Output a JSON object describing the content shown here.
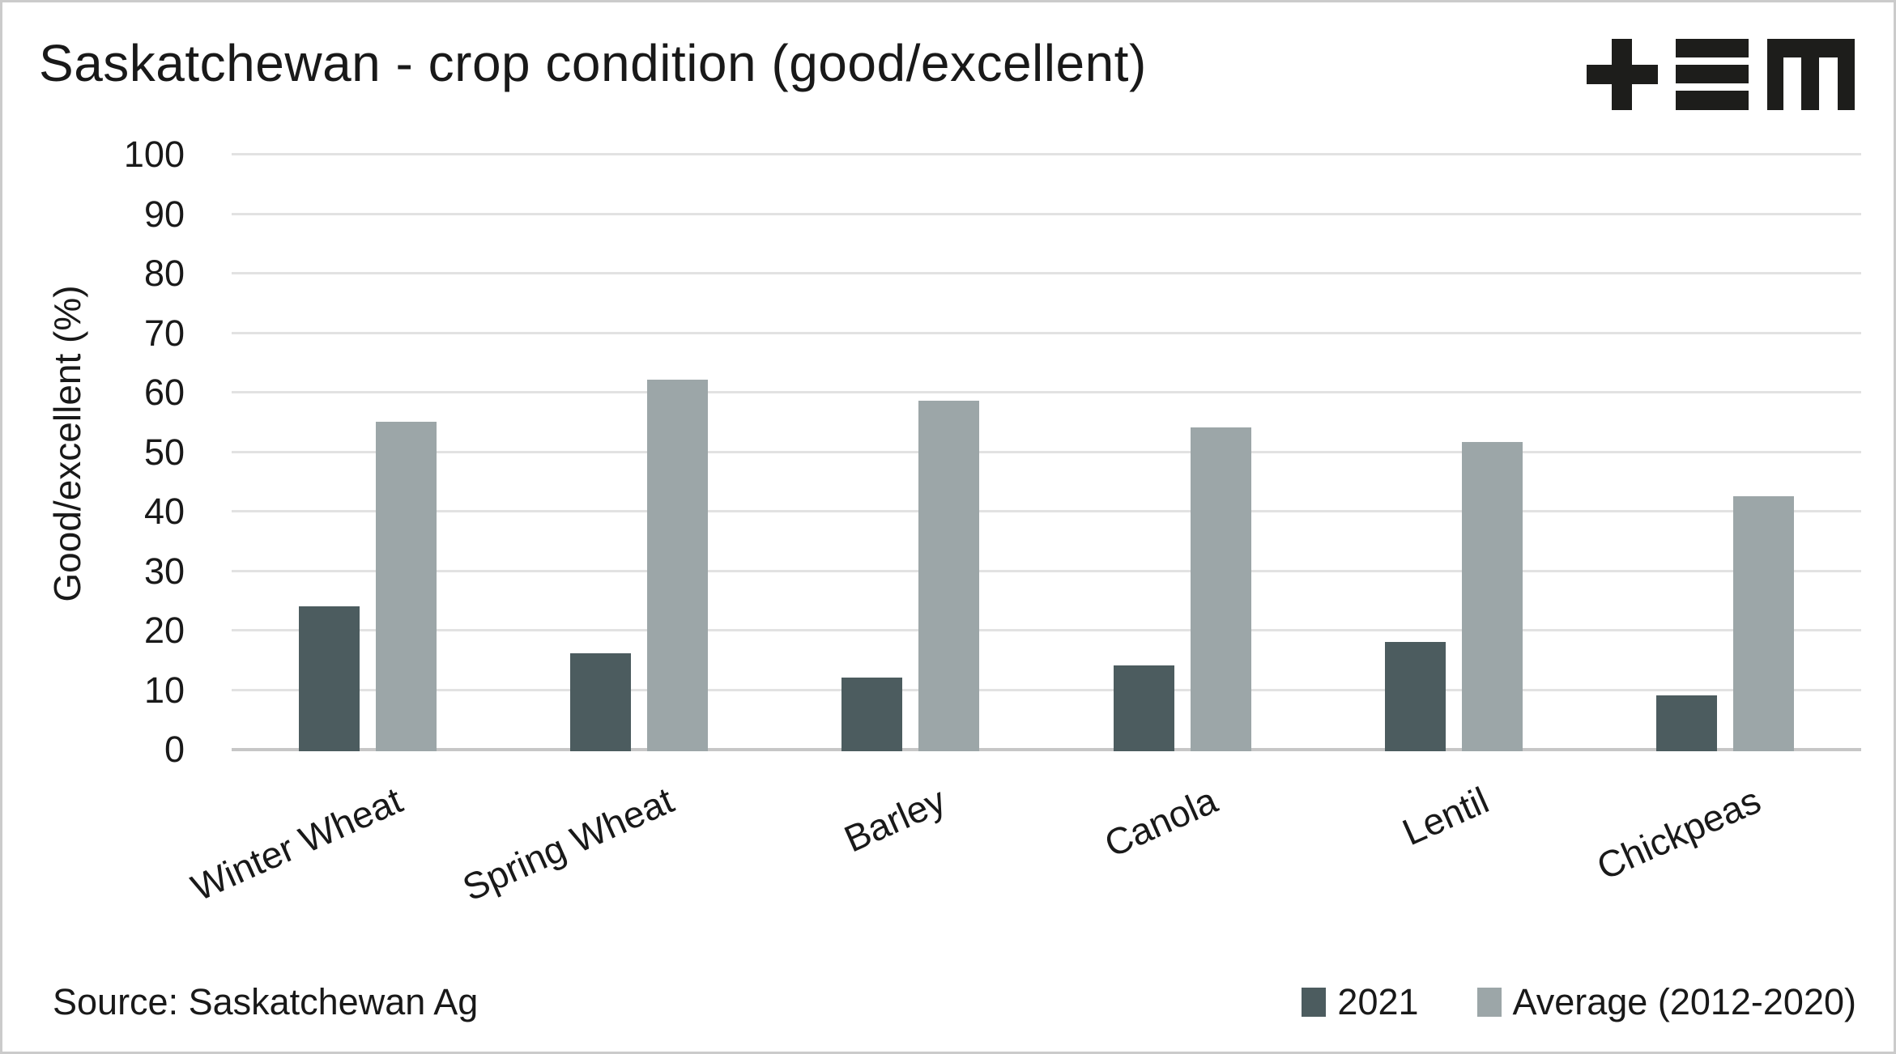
{
  "title": "Saskatchewan - crop condition (good/excellent)",
  "source_label": "Source: Saskatchewan Ag",
  "header": {
    "logo_icon": "plus-equals-m-logo"
  },
  "chart_data": {
    "type": "bar",
    "categories": [
      "Winter Wheat",
      "Spring Wheat",
      "Barley",
      "Canola",
      "Lentil",
      "Chickpeas"
    ],
    "series": [
      {
        "name": "2021",
        "color": "#4c5c5f",
        "values": [
          24,
          16,
          12,
          14,
          18,
          9
        ]
      },
      {
        "name": "Average (2012-2020)",
        "color": "#9ca6a8",
        "values": [
          55,
          62,
          58.5,
          54,
          51.5,
          42.5
        ]
      }
    ],
    "title": "Saskatchewan - crop condition (good/excellent)",
    "xlabel": "",
    "ylabel": "Good/excellent (%)",
    "ylim": [
      0,
      100
    ],
    "ytick_step": 10,
    "grid": true,
    "grid_color": "#e2e2e2",
    "axis_color": "#c6c6c6",
    "text_color": "#191919",
    "legend_position": "bottom-right"
  }
}
